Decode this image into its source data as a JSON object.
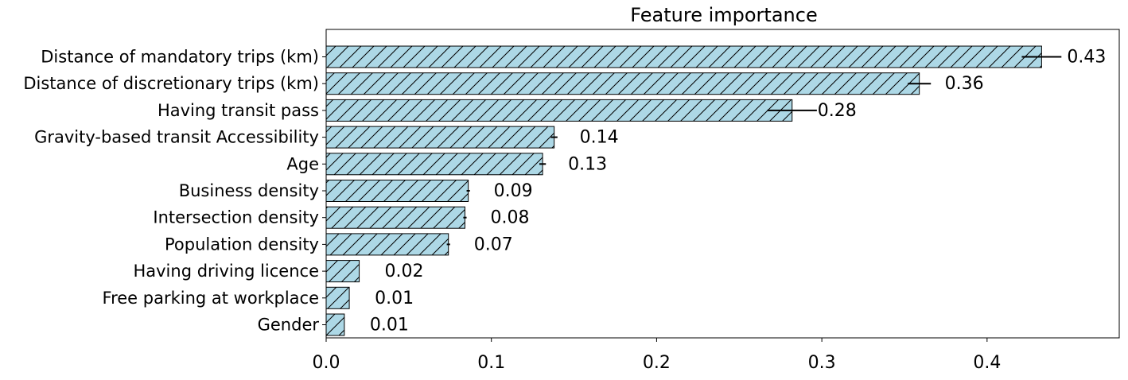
{
  "chart_data": {
    "type": "bar",
    "orientation": "horizontal",
    "title": "Feature importance",
    "xlabel": "",
    "ylabel": "",
    "xlim": [
      0.0,
      0.48
    ],
    "x_ticks": [
      0.0,
      0.1,
      0.2,
      0.3,
      0.4
    ],
    "x_tick_labels": [
      "0.0",
      "0.1",
      "0.2",
      "0.3",
      "0.4"
    ],
    "grid": false,
    "legend": "none",
    "bar_color": "#add8e6",
    "bar_edge_color": "#000000",
    "bar_hatch": "diagonal",
    "bars": [
      {
        "label": "Distance of mandatory trips (km)",
        "value": 0.433,
        "error": 0.012,
        "value_label": "0.43"
      },
      {
        "label": "Distance of discretionary trips (km)",
        "value": 0.359,
        "error": 0.007,
        "value_label": "0.36"
      },
      {
        "label": "Having transit pass",
        "value": 0.282,
        "error": 0.015,
        "value_label": "0.28"
      },
      {
        "label": "Gravity-based transit Accessibility",
        "value": 0.138,
        "error": 0.002,
        "value_label": "0.14"
      },
      {
        "label": "Age",
        "value": 0.131,
        "error": 0.002,
        "value_label": "0.13"
      },
      {
        "label": "Business density",
        "value": 0.086,
        "error": 0.001,
        "value_label": "0.09"
      },
      {
        "label": "Intersection density",
        "value": 0.084,
        "error": 0.001,
        "value_label": "0.08"
      },
      {
        "label": "Population density",
        "value": 0.074,
        "error": 0.001,
        "value_label": "0.07"
      },
      {
        "label": "Having driving licence",
        "value": 0.02,
        "error": 0.0,
        "value_label": "0.02"
      },
      {
        "label": "Free parking at workplace",
        "value": 0.014,
        "error": 0.0,
        "value_label": "0.01"
      },
      {
        "label": "Gender",
        "value": 0.011,
        "error": 0.0,
        "value_label": "0.01"
      }
    ]
  }
}
